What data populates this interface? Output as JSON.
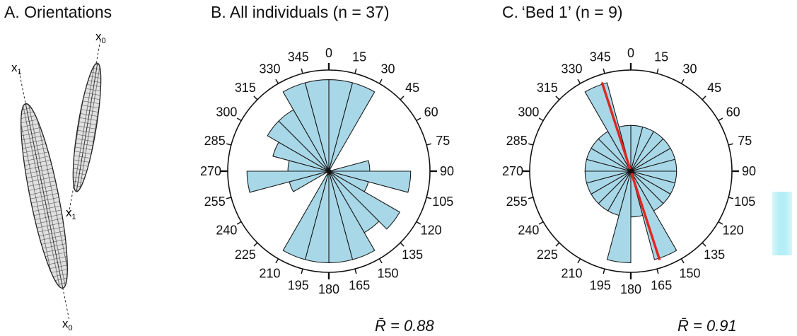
{
  "panel_a": {
    "title": "A. Orientations",
    "labels": {
      "left_top": "x",
      "left_top_sub": "1",
      "left_bottom": "x",
      "left_bottom_sub": "0",
      "right_top": "x",
      "right_top_sub": "0",
      "right_bottom": "x",
      "right_bottom_sub": "1"
    }
  },
  "chart_data": [
    {
      "type": "rose",
      "title": "B. All individuals (n = 37)",
      "statistic": "R̄ = 0.88",
      "bin_width_deg": 15,
      "bins": [
        0,
        15,
        30,
        45,
        60,
        75,
        90,
        105,
        120,
        135,
        150,
        165,
        180,
        195,
        210,
        225,
        240,
        255,
        270,
        285,
        300,
        315,
        330,
        345
      ],
      "tick_labels": [
        "0",
        "15",
        "30",
        "45",
        "60",
        "75",
        "90",
        "105",
        "120",
        "135",
        "150",
        "165",
        "180",
        "195",
        "210",
        "225",
        "240",
        "255",
        "270",
        "285",
        "300",
        "315",
        "330",
        "345"
      ],
      "values": [
        5,
        5,
        0,
        0,
        0,
        1,
        4,
        1,
        4,
        3,
        5,
        5,
        5,
        5,
        0,
        0,
        1,
        4,
        1,
        2,
        3,
        3,
        5,
        5
      ],
      "max_value": 5,
      "fill_color": "#a8d8e8"
    },
    {
      "type": "rose",
      "title": "C. ‘Bed 1’ (n = 9)",
      "statistic": "R̄ = 0.91",
      "bin_width_deg": 15,
      "bins": [
        0,
        15,
        30,
        45,
        60,
        75,
        90,
        105,
        120,
        135,
        150,
        165,
        180,
        195,
        210,
        225,
        240,
        255,
        270,
        285,
        300,
        315,
        330,
        345
      ],
      "tick_labels": [
        "0",
        "15",
        "30",
        "45",
        "60",
        "75",
        "90",
        "105",
        "120",
        "135",
        "150",
        "165",
        "180",
        "195",
        "210",
        "225",
        "240",
        "255",
        "270",
        "285",
        "300",
        "315",
        "330",
        "345"
      ],
      "values": [
        1,
        1,
        1,
        1,
        1,
        1,
        1,
        1,
        1,
        1,
        4,
        1,
        4,
        1,
        1,
        1,
        1,
        1,
        1,
        1,
        1,
        1,
        4,
        1
      ],
      "max_value": 4,
      "mean_axis_deg": 162,
      "mean_line_color": "#e0261e",
      "fill_color": "#a8d8e8"
    }
  ]
}
